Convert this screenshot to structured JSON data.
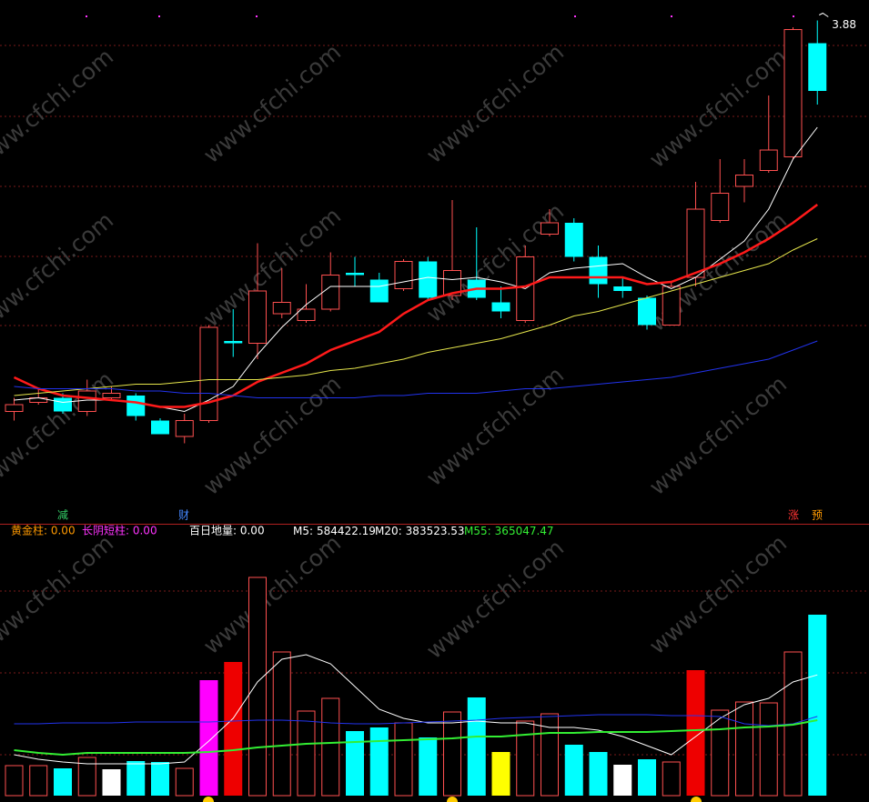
{
  "watermark": "www.cfchi.com",
  "signals": [
    "减",
    "财",
    "涨",
    "预"
  ],
  "chart_data": [
    {
      "type": "candlestick",
      "ylim": [
        1.73,
        3.97
      ],
      "up_color": "#ff5050",
      "down_color": "#00ffff",
      "open": [
        2.16,
        2.2,
        2.22,
        2.16,
        2.22,
        2.23,
        2.12,
        2.05,
        2.12,
        2.47,
        2.46,
        2.59,
        2.56,
        2.61,
        2.77,
        2.74,
        2.7,
        2.82,
        2.67,
        2.74,
        2.64,
        2.56,
        2.94,
        2.99,
        2.84,
        2.71,
        2.66,
        2.54,
        2.75,
        3.0,
        3.15,
        3.22,
        3.28,
        3.78
      ],
      "close": [
        2.19,
        2.22,
        2.16,
        2.25,
        2.24,
        2.14,
        2.06,
        2.12,
        2.53,
        2.46,
        2.69,
        2.64,
        2.61,
        2.76,
        2.76,
        2.64,
        2.82,
        2.66,
        2.78,
        2.66,
        2.6,
        2.84,
        2.99,
        2.84,
        2.72,
        2.69,
        2.54,
        2.71,
        3.05,
        3.12,
        3.2,
        3.31,
        3.84,
        3.57
      ],
      "high": [
        2.22,
        2.26,
        2.24,
        2.3,
        2.27,
        2.24,
        2.13,
        2.15,
        2.54,
        2.61,
        2.9,
        2.79,
        2.72,
        2.86,
        2.84,
        2.77,
        2.83,
        2.84,
        3.09,
        2.97,
        2.71,
        2.89,
        3.05,
        3.01,
        2.89,
        2.75,
        2.67,
        2.73,
        3.17,
        3.27,
        3.27,
        3.55,
        3.85,
        3.88
      ],
      "low": [
        2.12,
        2.19,
        2.15,
        2.14,
        2.21,
        2.12,
        2.06,
        2.02,
        2.11,
        2.4,
        2.39,
        2.57,
        2.55,
        2.6,
        2.71,
        2.64,
        2.69,
        2.65,
        2.65,
        2.65,
        2.57,
        2.55,
        2.93,
        2.82,
        2.66,
        2.66,
        2.52,
        2.54,
        2.71,
        2.99,
        3.08,
        3.21,
        3.27,
        3.51
      ],
      "series": [
        {
          "color": "#ffffff",
          "values": [
            2.21,
            2.22,
            2.2,
            2.21,
            2.21,
            2.2,
            2.18,
            2.16,
            2.21,
            2.27,
            2.41,
            2.53,
            2.63,
            2.71,
            2.71,
            2.71,
            2.73,
            2.75,
            2.74,
            2.75,
            2.73,
            2.7,
            2.77,
            2.79,
            2.8,
            2.81,
            2.75,
            2.7,
            2.75,
            2.83,
            2.91,
            3.05,
            3.27,
            3.41
          ]
        },
        {
          "color": "#ff1a1a",
          "values": [
            2.31,
            2.26,
            2.23,
            2.22,
            2.21,
            2.2,
            2.18,
            2.18,
            2.2,
            2.23,
            2.29,
            2.33,
            2.37,
            2.43,
            2.47,
            2.51,
            2.59,
            2.65,
            2.68,
            2.7,
            2.7,
            2.71,
            2.75,
            2.75,
            2.75,
            2.75,
            2.72,
            2.73,
            2.77,
            2.81,
            2.86,
            2.92,
            2.99,
            3.07
          ]
        },
        {
          "color": "#e6e64c",
          "values": [
            2.23,
            2.24,
            2.25,
            2.26,
            2.27,
            2.28,
            2.28,
            2.29,
            2.3,
            2.3,
            2.3,
            2.31,
            2.32,
            2.34,
            2.35,
            2.37,
            2.39,
            2.42,
            2.44,
            2.46,
            2.48,
            2.51,
            2.54,
            2.58,
            2.6,
            2.63,
            2.66,
            2.69,
            2.72,
            2.75,
            2.78,
            2.81,
            2.87,
            2.92
          ]
        },
        {
          "color": "#2233ee",
          "values": [
            2.27,
            2.26,
            2.26,
            2.26,
            2.26,
            2.25,
            2.25,
            2.24,
            2.24,
            2.23,
            2.22,
            2.22,
            2.22,
            2.22,
            2.22,
            2.23,
            2.23,
            2.24,
            2.24,
            2.24,
            2.25,
            2.26,
            2.26,
            2.27,
            2.28,
            2.29,
            2.3,
            2.31,
            2.33,
            2.35,
            2.37,
            2.39,
            2.43,
            2.47
          ]
        }
      ]
    },
    {
      "type": "bar",
      "ylim": [
        0,
        1254000
      ],
      "hollow_color": "#ff5050",
      "indicators": [
        "黄金柱: 0.00",
        "长阴短柱: 0.00",
        "百日地量: 0.00"
      ],
      "values": [
        145200,
        145200,
        132000,
        184800,
        127600,
        167200,
        162800,
        132000,
        558800,
        646800,
        1056000,
        695200,
        409200,
        470800,
        312400,
        330000,
        352000,
        281600,
        404800,
        475200,
        211200,
        360800,
        396000,
        246400,
        211200,
        149600,
        176000,
        162800,
        607200,
        413600,
        453200,
        448800,
        695200,
        875600
      ],
      "colors": [
        "none",
        "none",
        "#00ffff",
        "none",
        "#ffffff",
        "#00ffff",
        "#00ffff",
        "none",
        "#ff00ff",
        "#ee0000",
        "none",
        "none",
        "none",
        "none",
        "#00ffff",
        "#00ffff",
        "none",
        "#00ffff",
        "none",
        "#00ffff",
        "#ffff00",
        "none",
        "none",
        "#00ffff",
        "#00ffff",
        "#ffffff",
        "#00ffff",
        "none",
        "#ee0000",
        "none",
        "none",
        "none",
        "none",
        "#00ffff"
      ],
      "series": [
        {
          "name": "M5:",
          "color": "#ffffff",
          "values": [
            198000,
            176000,
            162800,
            154000,
            154000,
            154000,
            154000,
            162800,
            264000,
            374000,
            550000,
            660000,
            682000,
            638000,
            528000,
            418000,
            374000,
            352000,
            352000,
            360800,
            352000,
            352000,
            330000,
            330000,
            316800,
            286000,
            242000,
            198000,
            286000,
            374000,
            440000,
            470800,
            550000,
            584422.19
          ]
        },
        {
          "name": "M20:",
          "color": "#2233ee",
          "values": [
            347600,
            347600,
            352000,
            352000,
            352000,
            356400,
            356400,
            356400,
            356400,
            360800,
            365200,
            365200,
            360800,
            352000,
            347600,
            347600,
            352000,
            356400,
            360800,
            365200,
            374000,
            378400,
            382800,
            387200,
            391600,
            391600,
            391600,
            387200,
            387200,
            382800,
            347600,
            338800,
            347600,
            383523.53
          ]
        },
        {
          "name": "M55:",
          "color": "#33ee33",
          "values": [
            220000,
            206800,
            198000,
            206800,
            206800,
            206800,
            206800,
            206800,
            211200,
            220000,
            233200,
            242000,
            250800,
            255200,
            259600,
            264000,
            268400,
            272800,
            277200,
            286000,
            286000,
            294800,
            303600,
            303600,
            308000,
            308000,
            308000,
            312400,
            316800,
            321200,
            330000,
            334400,
            343200,
            365047.47
          ]
        }
      ]
    }
  ]
}
